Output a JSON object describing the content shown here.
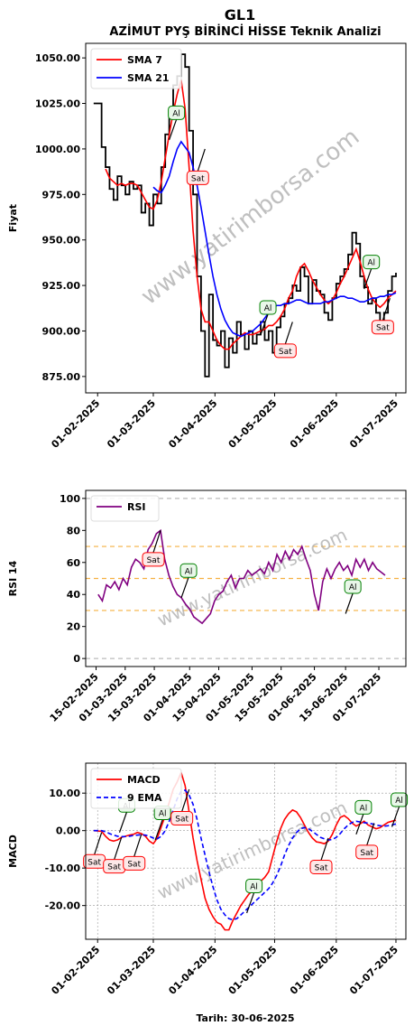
{
  "header": {
    "title": "GL1",
    "subtitle": "AZİMUT PYŞ BİRİNCİ HİSSE Teknik Analizi"
  },
  "watermark": "www.yatirimborsa.com",
  "footer": {
    "date_label": "Tarih: 30-06-2025"
  },
  "colors": {
    "price": "#000000",
    "sma7": "#ff0000",
    "sma21": "#0000ff",
    "rsi": "#800080",
    "macd": "#ff0000",
    "ema9": "#0000ff",
    "buy": "#008000",
    "sell": "#ff0000",
    "guide": "#f5b041"
  },
  "chart_data": [
    {
      "type": "line",
      "name": "price",
      "ylabel": "Fiyat",
      "ylim": [
        866,
        1058
      ],
      "yticks": [
        875,
        900,
        925,
        950,
        975,
        1000,
        1025,
        1050
      ],
      "ytick_labels": [
        "875.00",
        "900.00",
        "925.00",
        "950.00",
        "975.00",
        "1000.00",
        "1025.00",
        "1050.00"
      ],
      "xlim": [
        -6,
        155
      ],
      "xticks": [
        0,
        28,
        59,
        89,
        120,
        150
      ],
      "xtick_labels": [
        "01-02-2025",
        "01-03-2025",
        "01-04-2025",
        "01-05-2025",
        "01-06-2025",
        "01-07-2025"
      ],
      "legend": [
        "SMA 7",
        "SMA 21"
      ],
      "legend_position": "top-left",
      "x": [
        -2,
        2,
        4,
        6,
        8,
        10,
        12,
        14,
        16,
        18,
        20,
        22,
        24,
        26,
        28,
        30,
        32,
        34,
        36,
        38,
        40,
        42,
        44,
        46,
        48,
        50,
        52,
        54,
        56,
        58,
        60,
        62,
        64,
        66,
        68,
        70,
        72,
        74,
        76,
        78,
        80,
        82,
        84,
        86,
        88,
        90,
        92,
        94,
        96,
        98,
        100,
        102,
        104,
        106,
        108,
        110,
        112,
        114,
        116,
        118,
        120,
        122,
        124,
        126,
        128,
        130,
        132,
        134,
        136,
        138,
        140,
        142,
        144,
        146,
        148,
        150
      ],
      "series": [
        {
          "name": "Close",
          "values": [
            1025,
            1001,
            990,
            978,
            972,
            985,
            980,
            975,
            982,
            978,
            980,
            965,
            970,
            958,
            975,
            970,
            990,
            1008,
            1022,
            1035,
            1040,
            1052,
            1045,
            1010,
            975,
            930,
            900,
            875,
            920,
            895,
            892,
            900,
            880,
            896,
            888,
            905,
            898,
            890,
            900,
            893,
            898,
            905,
            895,
            900,
            888,
            902,
            908,
            915,
            918,
            925,
            922,
            935,
            930,
            915,
            928,
            922,
            920,
            910,
            906,
            918,
            926,
            930,
            934,
            942,
            954,
            948,
            930,
            924,
            915,
            918,
            910,
            905,
            910,
            922,
            930,
            932
          ]
        },
        {
          "name": "SMA 7",
          "values": [
            null,
            null,
            989,
            984,
            982,
            980,
            981,
            980,
            981,
            981,
            980,
            976,
            972,
            968,
            967,
            972,
            982,
            995,
            1008,
            1020,
            1030,
            1038,
            1022,
            990,
            955,
            930,
            912,
            905,
            905,
            900,
            895,
            892,
            890,
            890,
            893,
            895,
            897,
            899,
            898,
            898,
            899,
            900,
            901,
            903,
            903,
            905,
            908,
            912,
            918,
            922,
            930,
            935,
            937,
            933,
            928,
            924,
            920,
            917,
            915,
            917,
            921,
            926,
            930,
            935,
            940,
            945,
            938,
            930,
            923,
            918,
            915,
            913,
            915,
            918,
            920,
            922
          ]
        },
        {
          "name": "SMA 21",
          "values": [
            null,
            null,
            null,
            null,
            null,
            null,
            null,
            null,
            null,
            null,
            null,
            null,
            null,
            null,
            979,
            977,
            976,
            980,
            985,
            993,
            1000,
            1004,
            1001,
            998,
            990,
            980,
            968,
            955,
            942,
            930,
            920,
            912,
            906,
            902,
            899,
            898,
            897,
            898,
            899,
            900,
            902,
            904,
            907,
            910,
            912,
            914,
            914,
            915,
            915,
            916,
            917,
            917,
            916,
            915,
            915,
            915,
            915,
            916,
            916,
            917,
            918,
            919,
            919,
            918,
            918,
            917,
            916,
            916,
            917,
            918,
            918,
            919,
            919,
            920,
            920,
            921
          ]
        }
      ],
      "annotations": [
        {
          "label": "Al",
          "type": "buy",
          "x": 36,
          "y": 1005
        },
        {
          "label": "Sat",
          "type": "sell",
          "x": 54,
          "y": 1000
        },
        {
          "label": "Al",
          "type": "buy",
          "x": 82,
          "y": 898
        },
        {
          "label": "Sat",
          "type": "sell",
          "x": 98,
          "y": 905
        },
        {
          "label": "Al",
          "type": "buy",
          "x": 134,
          "y": 923
        },
        {
          "label": "Sat",
          "type": "sell",
          "x": 147,
          "y": 918
        }
      ]
    },
    {
      "type": "line",
      "name": "rsi",
      "ylabel": "RSI 14",
      "ylim": [
        -5,
        105
      ],
      "yticks": [
        0,
        20,
        40,
        60,
        80,
        100
      ],
      "ytick_labels": [
        "0",
        "20",
        "40",
        "60",
        "80",
        "100"
      ],
      "xlim": [
        -5,
        149
      ],
      "xticks": [
        0,
        14,
        28,
        45,
        59,
        75,
        89,
        105,
        120,
        136
      ],
      "xtick_labels": [
        "15-02-2025",
        "01-03-2025",
        "15-03-2025",
        "01-04-2025",
        "15-04-2025",
        "01-05-2025",
        "15-05-2025",
        "01-06-2025",
        "15-06-2025",
        "01-07-2025"
      ],
      "hlines": [
        0,
        30,
        50,
        70,
        100
      ],
      "legend": [
        "RSI"
      ],
      "legend_position": "top-left",
      "x": [
        1,
        3,
        5,
        7,
        9,
        11,
        13,
        15,
        17,
        19,
        21,
        23,
        25,
        27,
        29,
        31,
        33,
        35,
        37,
        39,
        41,
        43,
        45,
        47,
        49,
        51,
        53,
        55,
        57,
        59,
        61,
        63,
        65,
        67,
        69,
        71,
        73,
        75,
        77,
        79,
        81,
        83,
        85,
        87,
        89,
        91,
        93,
        95,
        97,
        99,
        101,
        103,
        105,
        107,
        109,
        111,
        113,
        115,
        117,
        119,
        121,
        123,
        125,
        127,
        129,
        131,
        133,
        135,
        137,
        139
      ],
      "series": [
        {
          "name": "RSI",
          "values": [
            40,
            36,
            46,
            44,
            48,
            43,
            50,
            46,
            57,
            62,
            60,
            56,
            68,
            72,
            78,
            80,
            62,
            52,
            45,
            40,
            38,
            34,
            31,
            26,
            24,
            22,
            25,
            28,
            36,
            40,
            42,
            48,
            52,
            44,
            50,
            50,
            55,
            52,
            54,
            56,
            53,
            60,
            55,
            65,
            60,
            67,
            62,
            68,
            65,
            70,
            62,
            55,
            40,
            30,
            48,
            56,
            50,
            56,
            60,
            55,
            58,
            52,
            62,
            57,
            62,
            55,
            60,
            56,
            54,
            52
          ]
        }
      ],
      "annotations": [
        {
          "label": "Sat",
          "type": "sell",
          "x": 31,
          "y": 80
        },
        {
          "label": "Al",
          "type": "buy",
          "x": 41,
          "y": 38
        },
        {
          "label": "Al",
          "type": "buy",
          "x": 120,
          "y": 28
        }
      ]
    },
    {
      "type": "line",
      "name": "macd",
      "ylabel": "MACD",
      "xlabel": "Tarih: 30-06-2025",
      "ylim": [
        -29,
        18
      ],
      "yticks": [
        -20,
        -10,
        0,
        10
      ],
      "ytick_labels": [
        "-20.00",
        "-10.00",
        "0.00",
        "10.00"
      ],
      "xlim": [
        -6,
        155
      ],
      "xticks": [
        0,
        28,
        59,
        89,
        120,
        150
      ],
      "xtick_labels": [
        "01-02-2025",
        "01-03-2025",
        "01-04-2025",
        "01-05-2025",
        "01-06-2025",
        "01-07-2025"
      ],
      "grid": true,
      "legend": [
        "MACD",
        "9 EMA"
      ],
      "legend_position": "top-left",
      "x": [
        -2,
        2,
        4,
        6,
        8,
        10,
        12,
        14,
        16,
        18,
        20,
        22,
        24,
        26,
        28,
        30,
        32,
        34,
        36,
        38,
        40,
        42,
        44,
        46,
        48,
        50,
        52,
        54,
        56,
        58,
        60,
        62,
        64,
        66,
        68,
        70,
        72,
        74,
        76,
        78,
        80,
        82,
        84,
        86,
        88,
        90,
        92,
        94,
        96,
        98,
        100,
        102,
        104,
        106,
        108,
        110,
        112,
        114,
        116,
        118,
        120,
        122,
        124,
        126,
        128,
        130,
        132,
        134,
        136,
        138,
        140,
        142,
        144,
        146,
        148,
        150
      ],
      "series": [
        {
          "name": "MACD",
          "values": [
            0,
            -0.2,
            -1.5,
            -2.5,
            -2.8,
            -2.5,
            -1.8,
            -1.5,
            -1.2,
            -1,
            -0.5,
            -0.8,
            -1.5,
            -2.8,
            -3.5,
            -2,
            1,
            4,
            7.5,
            11,
            13,
            15.5,
            12,
            5,
            -2,
            -8,
            -13,
            -18,
            -21,
            -23,
            -24.5,
            -25,
            -26.5,
            -26.5,
            -24,
            -22,
            -20,
            -18.5,
            -17,
            -16,
            -15,
            -13.5,
            -12.5,
            -11,
            -7,
            -3,
            0.5,
            3,
            4.5,
            5.5,
            5,
            3.5,
            1.5,
            -0.5,
            -2,
            -3,
            -3.2,
            -3.5,
            -2.8,
            -1,
            1.5,
            3.5,
            4,
            3.2,
            2,
            1.2,
            1.8,
            2.5,
            1.5,
            1,
            0.5,
            0.8,
            1.5,
            2.2,
            2.5,
            2.8
          ]
        },
        {
          "name": "9 EMA",
          "values": [
            0,
            0,
            -0.3,
            -0.8,
            -1.2,
            -1.5,
            -1.6,
            -1.6,
            -1.5,
            -1.3,
            -1.2,
            -1.1,
            -1.2,
            -1.5,
            -2,
            -2.2,
            -1.5,
            0,
            2.5,
            5.5,
            8.5,
            10.5,
            10.8,
            9.5,
            7,
            3,
            -2,
            -6.5,
            -11,
            -15,
            -18.5,
            -21,
            -22.5,
            -23.5,
            -23.8,
            -23.5,
            -22.5,
            -21.5,
            -20.5,
            -19.5,
            -18.5,
            -17.5,
            -16.5,
            -15.5,
            -14,
            -12,
            -9.5,
            -6.5,
            -4,
            -2,
            -0.5,
            0.5,
            0.8,
            0.5,
            -0.2,
            -1,
            -1.8,
            -2.2,
            -2.5,
            -2.4,
            -1.8,
            -0.8,
            0.5,
            1.5,
            2.2,
            2.5,
            2.3,
            2.1,
            2,
            1.8,
            1.5,
            1.3,
            1.2,
            1.3,
            1.5,
            1.8
          ]
        }
      ],
      "annotations": [
        {
          "label": "Sat",
          "type": "sell",
          "x": 2,
          "y": -0.5
        },
        {
          "label": "Al",
          "type": "buy",
          "x": 11,
          "y": -0.5
        },
        {
          "label": "Sat",
          "type": "sell",
          "x": 12,
          "y": -1.8
        },
        {
          "label": "Sat",
          "type": "sell",
          "x": 22,
          "y": -1
        },
        {
          "label": "Al",
          "type": "buy",
          "x": 29,
          "y": -2.5
        },
        {
          "label": "Sat",
          "type": "sell",
          "x": 46,
          "y": 11
        },
        {
          "label": "Al",
          "type": "buy",
          "x": 75,
          "y": -22
        },
        {
          "label": "Sat",
          "type": "sell",
          "x": 116,
          "y": -2
        },
        {
          "label": "Al",
          "type": "buy",
          "x": 130,
          "y": -1
        },
        {
          "label": "Sat",
          "type": "sell",
          "x": 139,
          "y": 2
        },
        {
          "label": "Al",
          "type": "buy",
          "x": 148,
          "y": 1
        }
      ]
    }
  ]
}
